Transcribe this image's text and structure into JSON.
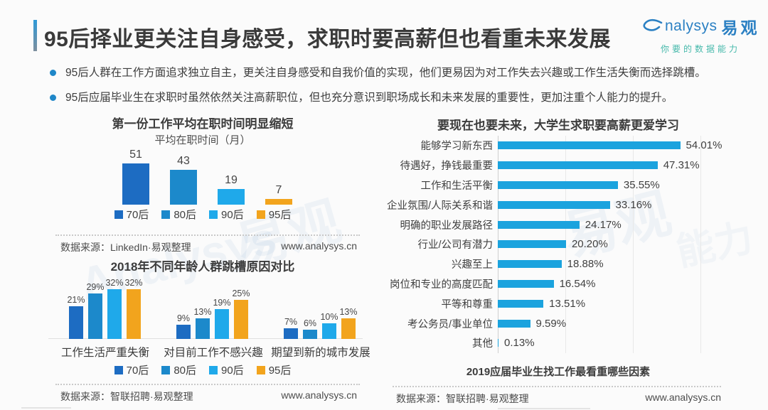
{
  "page": {
    "title": "95后择业更关注自身感受，求职时要高薪但也看重未来发展",
    "brand": {
      "en": "nalysys",
      "cn": "易观",
      "tagline": "你要的数据能力"
    }
  },
  "bullets": [
    "95后人群在工作方面追求独立自主，更关注自身感受和自我价值的实现，他们更易因为对工作失去兴趣或工作生活失衡而选择跳槽。",
    "95后应届毕业生在求职时虽然依然关注高薪职位，但也充分意识到职场成长和未来发展的重要性，更加注重个人能力的提升。"
  ],
  "palette": {
    "gen70": "#1d6cc2",
    "gen80": "#1c89cb",
    "gen90": "#1fa9ea",
    "gen95": "#f2a41d",
    "hbar": "#1ba3de",
    "accent": "#2e9ad8",
    "brandBlue": "#2b80c3",
    "brandTeal": "#46b9ab"
  },
  "legend": {
    "items": [
      {
        "label": "70后"
      },
      {
        "label": "80后"
      },
      {
        "label": "90后"
      },
      {
        "label": "95后"
      }
    ]
  },
  "chart_data": [
    {
      "type": "bar",
      "title": "第一份工作平均在职时间明显缩短",
      "subtitle": "平均在职时间（月）",
      "categories": [
        "70后",
        "80后",
        "90后",
        "95后"
      ],
      "values": [
        51,
        43,
        19,
        7
      ],
      "ylabel": "平均在职时间（月）",
      "legend_position": "bottom",
      "source": "数据来源：LinkedIn·易观整理",
      "website": "www.analysys.cn"
    },
    {
      "type": "bar",
      "title": "2018年不同年龄人群跳槽原因对比",
      "categories": [
        "工作生活严重失衡",
        "对目前工作不感兴趣",
        "期望到新的城市发展"
      ],
      "series": [
        {
          "name": "70后",
          "values": [
            21,
            9,
            7
          ]
        },
        {
          "name": "80后",
          "values": [
            29,
            13,
            6
          ]
        },
        {
          "name": "90后",
          "values": [
            32,
            19,
            10
          ]
        },
        {
          "name": "95后",
          "values": [
            32,
            25,
            13
          ]
        }
      ],
      "labels": [
        [
          "21%",
          "29%",
          "32%",
          "32%"
        ],
        [
          "9%",
          "13%",
          "19%",
          "25%"
        ],
        [
          "7%",
          "6%",
          "10%",
          "13%"
        ]
      ],
      "legend_position": "bottom",
      "source": "数据来源：智联招聘·易观整理",
      "website": "www.analysys.cn"
    },
    {
      "type": "bar",
      "orientation": "horizontal",
      "title": "要现在也要未来，大学生求职要高薪更爱学习",
      "categories": [
        "能够学习新东西",
        "待遇好，挣钱最重要",
        "工作和生活平衡",
        "企业氛围/人际关系和谐",
        "明确的职业发展路径",
        "行业/公司有潜力",
        "兴趣至上",
        "岗位和专业的高度匹配",
        "平等和尊重",
        "考公务员/事业单位",
        "其他"
      ],
      "values": [
        54.01,
        47.31,
        35.55,
        33.16,
        24.17,
        20.2,
        18.88,
        16.54,
        13.51,
        9.59,
        0.13
      ],
      "value_labels": [
        "54.01%",
        "47.31%",
        "35.55%",
        "33.16%",
        "24.17%",
        "20.20%",
        "18.88%",
        "16.54%",
        "13.51%",
        "9.59%",
        "0.13%"
      ],
      "xlim": [
        0,
        60
      ],
      "grid": "vertical",
      "caption": "2019应届毕业生找工作最看重哪些因素",
      "source": "数据来源：智联招聘·易观整理",
      "website": "www.analysys.cn"
    }
  ]
}
